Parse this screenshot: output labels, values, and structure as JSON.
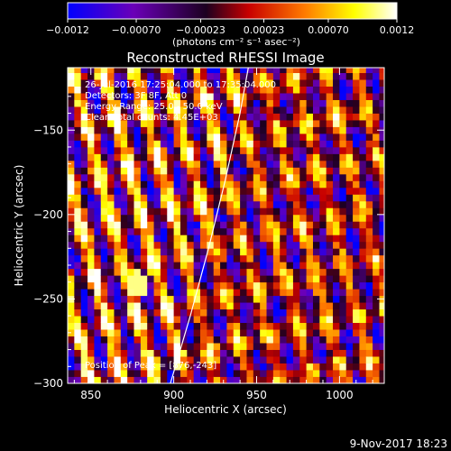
{
  "chart_data": {
    "type": "heatmap",
    "title": "Reconstructed RHESSI Image",
    "xlabel": "Heliocentric X (arcsec)",
    "ylabel": "Heliocentric Y (arcsec)",
    "xlim": [
      836,
      1027
    ],
    "ylim": [
      -300,
      -113
    ],
    "x_ticks": [
      850,
      900,
      950,
      1000
    ],
    "y_ticks": [
      -150,
      -200,
      -250,
      -300
    ],
    "x_tick_labels": [
      "850",
      "900",
      "950",
      "1000"
    ],
    "y_tick_labels": [
      "−150",
      "−200",
      "−250",
      "−300"
    ],
    "colorbar": {
      "range": [
        -0.0012,
        0.0012
      ],
      "ticks": [
        -0.0012,
        -0.0007,
        -0.00023,
        0.00023,
        0.0007,
        0.0012
      ],
      "tick_labels": [
        "−0.0012",
        "−0.00070",
        "−0.00023",
        "0.00023",
        "0.00070",
        "0.0012"
      ],
      "unit_label": "(photons cm⁻² s⁻¹ asec⁻²)",
      "colormap": [
        "#0000ff",
        "#6a00b8",
        "#1c0020",
        "#c80000",
        "#ff7a00",
        "#ffff00",
        "#ffffff"
      ]
    },
    "annotations": [
      "26-Jul-2016 17:25:04.000 to 17:35:04.000",
      "Detectors: 3F 8F, Att 0",
      "Energy Range: 25.0 - 50.0 keV",
      "Clean     Total counts: 4.45E+03"
    ],
    "peak_label": "Position of Peak = [876,-243]",
    "peak": {
      "x": 876,
      "y": -243
    },
    "limb_line": [
      {
        "x": 898,
        "y": -300
      },
      {
        "x": 910,
        "y": -260
      },
      {
        "x": 921,
        "y": -220
      },
      {
        "x": 931,
        "y": -180
      },
      {
        "x": 940,
        "y": -140
      },
      {
        "x": 945,
        "y": -113
      }
    ],
    "grid": false,
    "pixel_size_arcsec": 4
  },
  "timestamp": "9-Nov-2017 18:23"
}
